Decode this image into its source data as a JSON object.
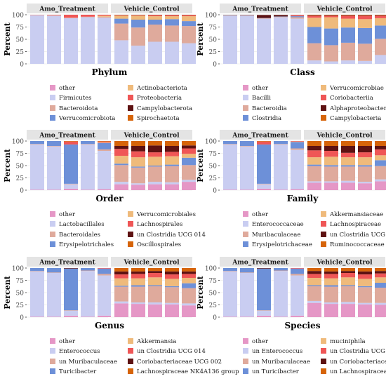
{
  "colors": {
    "other": "#e597c6",
    "firmicutes": "#c9cdf1",
    "bacteroidota": "#dfaa9c",
    "verrucomicrobiota": "#6d90d8",
    "actinobacteriota": "#efba7b",
    "proteobacteria": "#ef5656",
    "campylobacterota": "#5e1212",
    "spirochaetota": "#d6640a",
    "strip_bg": "#e4e4e4",
    "grid": "#ebebeb",
    "axis_text": "#4d4d4d"
  },
  "chart_data": [
    {
      "type": "bar",
      "stacked": true,
      "facets": [
        "Amo_Treatment",
        "Vehicle_Control"
      ],
      "title": "Phylum",
      "ylabel": "Percent",
      "yticks": [
        "100",
        "75",
        "50",
        "25",
        "0"
      ],
      "ylim": [
        0,
        100
      ],
      "legend": [
        "other",
        "Firmicutes",
        "Bacteroidota",
        "Verrucomicrobiota",
        "Actinobacteriota",
        "Proteobacteria",
        "Campylobacterota",
        "Spirochaetota"
      ],
      "series": [
        {
          "name": "other",
          "color_key": "other",
          "values": [
            0,
            0,
            0,
            0,
            0,
            0,
            0,
            0,
            0,
            0
          ]
        },
        {
          "name": "Firmicutes",
          "color_key": "firmicutes",
          "values": [
            99,
            98,
            93,
            95,
            94,
            48,
            37,
            45,
            45,
            42
          ]
        },
        {
          "name": "Bacteroidota",
          "color_key": "bacteroidota",
          "values": [
            0.5,
            1,
            1,
            1,
            2,
            34,
            37,
            35,
            33,
            35
          ]
        },
        {
          "name": "Verrucomicrobiota",
          "color_key": "verrucomicrobiota",
          "values": [
            0,
            0,
            0,
            0,
            0,
            10,
            16,
            10,
            13,
            10
          ]
        },
        {
          "name": "Actinobacteriota",
          "color_key": "actinobacteriota",
          "values": [
            0,
            0,
            0,
            0,
            2,
            6,
            8,
            7,
            6,
            10
          ]
        },
        {
          "name": "Proteobacteria",
          "color_key": "proteobacteria",
          "values": [
            0.5,
            1,
            6,
            4,
            2,
            1,
            1,
            2,
            2,
            2
          ]
        },
        {
          "name": "Campylobacterota",
          "color_key": "campylobacterota",
          "values": [
            0,
            0,
            0,
            0,
            0,
            0.5,
            0.5,
            0.5,
            0.5,
            0.5
          ]
        },
        {
          "name": "Spirochaetota",
          "color_key": "spirochaetota",
          "values": [
            0,
            0,
            0,
            0,
            0,
            0.5,
            0.5,
            0.5,
            0.5,
            0.5
          ]
        }
      ]
    },
    {
      "type": "bar",
      "stacked": true,
      "facets": [
        "Amo_Treatment",
        "Vehicle_Control"
      ],
      "title": "Class",
      "ylabel": "Percent",
      "yticks": [
        "100",
        "75",
        "50",
        "25",
        "0"
      ],
      "ylim": [
        0,
        100
      ],
      "legend": [
        "other",
        "Bacilli",
        "Bacteroidia",
        "Clostridia",
        "Verrucomicrobiae",
        "Coriobacteriia",
        "Alphaproteobacteria",
        "Campylobacteria"
      ],
      "series": [
        {
          "name": "other",
          "color_key": "other",
          "values": [
            0,
            0,
            0,
            0,
            0,
            0,
            0,
            0,
            0,
            0
          ]
        },
        {
          "name": "Bacilli",
          "color_key": "firmicutes",
          "values": [
            98,
            98,
            92,
            95,
            92,
            7,
            5,
            7,
            6,
            18
          ]
        },
        {
          "name": "Bacteroidia",
          "color_key": "bacteroidota",
          "values": [
            0.5,
            1,
            1,
            1,
            3,
            35,
            33,
            36,
            35,
            33
          ]
        },
        {
          "name": "Clostridia",
          "color_key": "verrucomicrobiota",
          "values": [
            0.5,
            0.5,
            0.5,
            0.5,
            2,
            33,
            34,
            31,
            32,
            27
          ]
        },
        {
          "name": "Verrucomicrobiae",
          "color_key": "actinobacteriota",
          "values": [
            0,
            0,
            0,
            0,
            0,
            19,
            23,
            18,
            18,
            15
          ]
        },
        {
          "name": "Coriobacteriia",
          "color_key": "proteobacteria",
          "values": [
            0,
            0,
            0,
            0,
            2,
            4,
            3,
            6,
            7,
            5
          ]
        },
        {
          "name": "Alphaproteobacteria",
          "color_key": "campylobacterota",
          "values": [
            0.5,
            0.5,
            6,
            3,
            0.5,
            1,
            1,
            1,
            1,
            1
          ]
        },
        {
          "name": "Campylobacteria",
          "color_key": "spirochaetota",
          "values": [
            0,
            0,
            0,
            0,
            0,
            1,
            1,
            1,
            1,
            1
          ]
        }
      ]
    },
    {
      "type": "bar",
      "stacked": true,
      "facets": [
        "Amo_Treatment",
        "Vehicle_Control"
      ],
      "title": "Order",
      "ylabel": "Percent",
      "yticks": [
        "100",
        "75",
        "50",
        "25",
        "0"
      ],
      "ylim": [
        0,
        100
      ],
      "legend": [
        "other",
        "Lactobacillales",
        "Bacteroidales",
        "Erysipelotrichales",
        "Verrucomicrobiales",
        "Lachnospirales",
        "un Clostridia UCG 014",
        "Oscillospirales"
      ],
      "series": [
        {
          "name": "other",
          "color_key": "other",
          "values": [
            1,
            1,
            3,
            1,
            2,
            12,
            11,
            12,
            12,
            17
          ]
        },
        {
          "name": "Lactobacillales",
          "color_key": "firmicutes",
          "values": [
            92,
            88,
            9,
            92,
            78,
            5,
            3,
            5,
            4,
            4
          ]
        },
        {
          "name": "Bacteroidales",
          "color_key": "bacteroidota",
          "values": [
            1,
            1,
            1,
            1,
            3,
            34,
            32,
            31,
            33,
            30
          ]
        },
        {
          "name": "Erysipelotrichales",
          "color_key": "verrucomicrobiota",
          "values": [
            6,
            10,
            80,
            6,
            13,
            3,
            2,
            2,
            3,
            15
          ]
        },
        {
          "name": "Verrucomicrobiales",
          "color_key": "actinobacteriota",
          "values": [
            0,
            0,
            0,
            0,
            1,
            16,
            19,
            18,
            17,
            8
          ]
        },
        {
          "name": "Lachnospirales",
          "color_key": "proteobacteria",
          "values": [
            0,
            0,
            6,
            0,
            2,
            14,
            12,
            9,
            9,
            11
          ]
        },
        {
          "name": "un Clostridia UCG 014",
          "color_key": "campylobacterota",
          "values": [
            0,
            0,
            0,
            0,
            0,
            6,
            11,
            14,
            12,
            6
          ]
        },
        {
          "name": "Oscillospirales",
          "color_key": "spirochaetota",
          "values": [
            0,
            0,
            1,
            0,
            1,
            10,
            10,
            9,
            10,
            9
          ]
        }
      ]
    },
    {
      "type": "bar",
      "stacked": true,
      "facets": [
        "Amo_Treatment",
        "Vehicle_Control"
      ],
      "title": "Family",
      "ylabel": "Percent",
      "yticks": [
        "100",
        "75",
        "50",
        "25",
        "0"
      ],
      "ylim": [
        0,
        100
      ],
      "legend": [
        "other",
        "Enterococcaceae",
        "Muribaculaceae",
        "Erysipelotrichaceae",
        "Akkermansiaceae",
        "Lachnospiraceae",
        "un Clostridia UCG 014",
        "Ruminococcaceae"
      ],
      "series": [
        {
          "name": "other",
          "color_key": "other",
          "values": [
            1,
            1,
            3,
            1,
            2,
            15,
            15,
            15,
            14,
            18
          ]
        },
        {
          "name": "Enterococcaceae",
          "color_key": "firmicutes",
          "values": [
            92,
            88,
            9,
            92,
            80,
            3,
            3,
            4,
            3,
            4
          ]
        },
        {
          "name": "Muribaculaceae",
          "color_key": "bacteroidota",
          "values": [
            1,
            1,
            1,
            1,
            3,
            31,
            30,
            29,
            31,
            27
          ]
        },
        {
          "name": "Erysipelotrichaceae",
          "color_key": "verrucomicrobiota",
          "values": [
            6,
            10,
            80,
            6,
            13,
            3,
            3,
            3,
            3,
            12
          ]
        },
        {
          "name": "Akkermansiaceae",
          "color_key": "actinobacteriota",
          "values": [
            0,
            0,
            0,
            0,
            1,
            15,
            17,
            16,
            16,
            10
          ]
        },
        {
          "name": "Lachnospiraceae",
          "color_key": "proteobacteria",
          "values": [
            0,
            0,
            6,
            0,
            1,
            14,
            12,
            9,
            10,
            12
          ]
        },
        {
          "name": "un Clostridia UCG 014",
          "color_key": "campylobacterota",
          "values": [
            0,
            0,
            0,
            0,
            0,
            9,
            10,
            14,
            13,
            7
          ]
        },
        {
          "name": "Ruminococcaceae",
          "color_key": "spirochaetota",
          "values": [
            0,
            0,
            1,
            0,
            0,
            10,
            10,
            10,
            10,
            10
          ]
        }
      ]
    },
    {
      "type": "bar",
      "stacked": true,
      "facets": [
        "Amo_Treatment",
        "Vehicle_Control"
      ],
      "title": "Genus",
      "ylabel": "Percent",
      "yticks": [
        "100",
        "75",
        "50",
        "25",
        "0"
      ],
      "ylim": [
        0,
        100
      ],
      "legend": [
        "other",
        "Enterococcus",
        "un Muribaculaceae",
        "Turicibacter",
        "Akkermansia",
        "un Clostridia UCG 014",
        "Coriobacteriaceae UCG 002",
        "Lachnospiraceae NK4A136 group"
      ],
      "series": [
        {
          "name": "other",
          "color_key": "other",
          "values": [
            1,
            1,
            3,
            1,
            3,
            28,
            27,
            26,
            26,
            24
          ]
        },
        {
          "name": "Enterococcus",
          "color_key": "firmicutes",
          "values": [
            92,
            89,
            10,
            93,
            82,
            4,
            3,
            4,
            3,
            4
          ]
        },
        {
          "name": "un Muribaculaceae",
          "color_key": "bacteroidota",
          "values": [
            1,
            1,
            1,
            1,
            3,
            30,
            32,
            33,
            32,
            31
          ]
        },
        {
          "name": "Turicibacter",
          "color_key": "verrucomicrobiota",
          "values": [
            6,
            9,
            85,
            5,
            11,
            2,
            3,
            2,
            2,
            10
          ]
        },
        {
          "name": "Akkermansia",
          "color_key": "actinobacteriota",
          "values": [
            0,
            0,
            0,
            0,
            0,
            15,
            14,
            16,
            15,
            11
          ]
        },
        {
          "name": "un Clostridia UCG 014",
          "color_key": "proteobacteria",
          "values": [
            0,
            0,
            0,
            0,
            1,
            8,
            9,
            9,
            9,
            8
          ]
        },
        {
          "name": "Coriobacteriaceae UCG 002",
          "color_key": "campylobacterota",
          "values": [
            0,
            0,
            1,
            0,
            0,
            6,
            5,
            4,
            6,
            5
          ]
        },
        {
          "name": "Lachnospiraceae NK4A136 group",
          "color_key": "spirochaetota",
          "values": [
            0,
            0,
            0,
            0,
            0,
            7,
            7,
            6,
            7,
            7
          ]
        }
      ]
    },
    {
      "type": "bar",
      "stacked": true,
      "facets": [
        "Amo_Treatment",
        "Vehicle_Control"
      ],
      "title": "Species",
      "ylabel": "Percent",
      "yticks": [
        "100",
        "75",
        "50",
        "25",
        "0"
      ],
      "ylim": [
        0,
        100
      ],
      "legend": [
        "other",
        "un Enterococcus",
        "un Muribaculaceae",
        "un Turicibacter",
        "muciniphila",
        "un Clostridia UCG 014",
        "un Coriobacteriaceae UCG 002",
        "un Lachnospiraceae"
      ],
      "series": [
        {
          "name": "other",
          "color_key": "other",
          "values": [
            1,
            1,
            3,
            1,
            3,
            29,
            27,
            27,
            26,
            25
          ]
        },
        {
          "name": "un Enterococcus",
          "color_key": "firmicutes",
          "values": [
            92,
            89,
            10,
            93,
            82,
            4,
            3,
            4,
            3,
            4
          ]
        },
        {
          "name": "un Muribaculaceae",
          "color_key": "bacteroidota",
          "values": [
            1,
            1,
            1,
            1,
            3,
            30,
            32,
            32,
            32,
            31
          ]
        },
        {
          "name": "un Turicibacter",
          "color_key": "verrucomicrobiota",
          "values": [
            6,
            9,
            85,
            5,
            11,
            2,
            3,
            2,
            2,
            10
          ]
        },
        {
          "name": "muciniphila",
          "color_key": "actinobacteriota",
          "values": [
            0,
            0,
            0,
            0,
            0,
            15,
            14,
            16,
            15,
            11
          ]
        },
        {
          "name": "un Clostridia UCG 014",
          "color_key": "proteobacteria",
          "values": [
            0,
            0,
            0,
            0,
            1,
            8,
            9,
            9,
            9,
            8
          ]
        },
        {
          "name": "un Coriobacteriaceae UCG 002",
          "color_key": "campylobacterota",
          "values": [
            0,
            0,
            1,
            0,
            0,
            6,
            5,
            4,
            6,
            5
          ]
        },
        {
          "name": "un Lachnospiraceae",
          "color_key": "spirochaetota",
          "values": [
            0,
            0,
            0,
            0,
            0,
            6,
            7,
            6,
            7,
            6
          ]
        }
      ]
    }
  ]
}
